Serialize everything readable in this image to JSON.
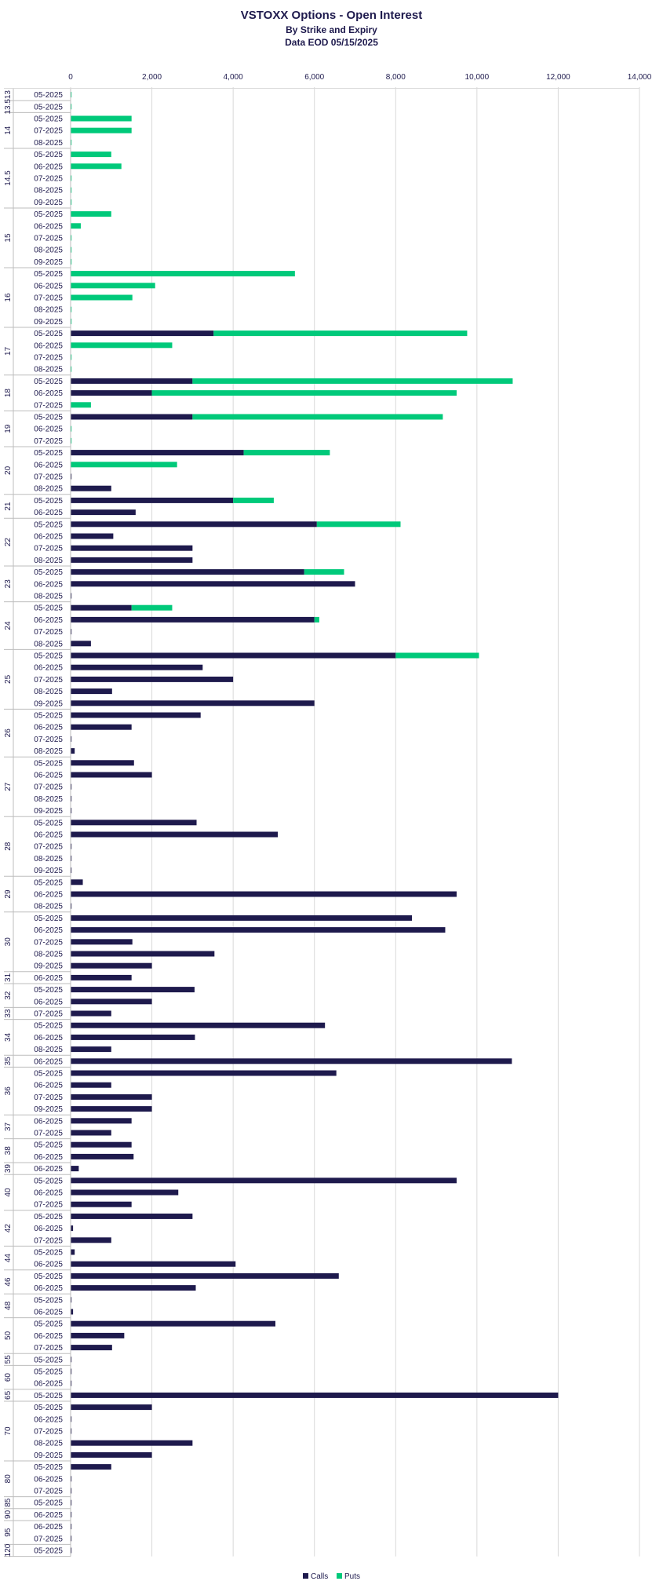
{
  "chart_data": {
    "type": "bar",
    "orientation": "horizontal",
    "stacked": true,
    "title": "VSTOXX Options - Open Interest",
    "subtitle": [
      "By Strike and Expiry",
      "Data EOD 05/15/2025"
    ],
    "xlim": [
      0,
      14000
    ],
    "xticks": [
      "0",
      "2,000",
      "4,000",
      "6,000",
      "8,000",
      "10,000",
      "12,000",
      "14,000"
    ],
    "grid": true,
    "legend_position": "bottom",
    "series": [
      {
        "name": "Calls",
        "color": "#1e1a4d"
      },
      {
        "name": "Puts",
        "color": "#00c97a"
      }
    ],
    "groups": [
      {
        "strike": "13",
        "rows": [
          {
            "e": "05-2025",
            "c": 0,
            "p": 20
          }
        ]
      },
      {
        "strike": "13.5",
        "rows": [
          {
            "e": "05-2025",
            "c": 0,
            "p": 20
          }
        ]
      },
      {
        "strike": "14",
        "rows": [
          {
            "e": "05-2025",
            "c": 0,
            "p": 1500
          },
          {
            "e": "07-2025",
            "c": 0,
            "p": 1500
          },
          {
            "e": "08-2025",
            "c": 0,
            "p": 20
          }
        ]
      },
      {
        "strike": "14.5",
        "rows": [
          {
            "e": "05-2025",
            "c": 0,
            "p": 1000
          },
          {
            "e": "06-2025",
            "c": 0,
            "p": 1250
          },
          {
            "e": "07-2025",
            "c": 0,
            "p": 20
          },
          {
            "e": "08-2025",
            "c": 0,
            "p": 20
          },
          {
            "e": "09-2025",
            "c": 0,
            "p": 20
          }
        ]
      },
      {
        "strike": "15",
        "rows": [
          {
            "e": "05-2025",
            "c": 0,
            "p": 1000
          },
          {
            "e": "06-2025",
            "c": 0,
            "p": 250
          },
          {
            "e": "07-2025",
            "c": 0,
            "p": 20
          },
          {
            "e": "08-2025",
            "c": 0,
            "p": 20
          },
          {
            "e": "09-2025",
            "c": 0,
            "p": 20
          }
        ]
      },
      {
        "strike": "16",
        "rows": [
          {
            "e": "05-2025",
            "c": 0,
            "p": 5520
          },
          {
            "e": "06-2025",
            "c": 0,
            "p": 2080
          },
          {
            "e": "07-2025",
            "c": 0,
            "p": 1520
          },
          {
            "e": "08-2025",
            "c": 0,
            "p": 20
          },
          {
            "e": "09-2025",
            "c": 0,
            "p": 20
          }
        ]
      },
      {
        "strike": "17",
        "rows": [
          {
            "e": "05-2025",
            "c": 3520,
            "p": 6240
          },
          {
            "e": "06-2025",
            "c": 0,
            "p": 2500
          },
          {
            "e": "07-2025",
            "c": 0,
            "p": 20
          },
          {
            "e": "08-2025",
            "c": 0,
            "p": 20
          }
        ]
      },
      {
        "strike": "18",
        "rows": [
          {
            "e": "05-2025",
            "c": 3000,
            "p": 7880
          },
          {
            "e": "06-2025",
            "c": 2000,
            "p": 7500
          },
          {
            "e": "07-2025",
            "c": 0,
            "p": 500
          }
        ]
      },
      {
        "strike": "19",
        "rows": [
          {
            "e": "05-2025",
            "c": 3000,
            "p": 6160
          },
          {
            "e": "06-2025",
            "c": 0,
            "p": 20
          },
          {
            "e": "07-2025",
            "c": 0,
            "p": 20
          }
        ]
      },
      {
        "strike": "20",
        "rows": [
          {
            "e": "05-2025",
            "c": 4260,
            "p": 2120
          },
          {
            "e": "06-2025",
            "c": 0,
            "p": 2620
          },
          {
            "e": "07-2025",
            "c": 20,
            "p": 0
          },
          {
            "e": "08-2025",
            "c": 1000,
            "p": 0
          }
        ]
      },
      {
        "strike": "21",
        "rows": [
          {
            "e": "05-2025",
            "c": 4000,
            "p": 1000
          },
          {
            "e": "06-2025",
            "c": 1600,
            "p": 0
          }
        ]
      },
      {
        "strike": "22",
        "rows": [
          {
            "e": "05-2025",
            "c": 6060,
            "p": 2060
          },
          {
            "e": "06-2025",
            "c": 1050,
            "p": 0
          },
          {
            "e": "07-2025",
            "c": 3000,
            "p": 0
          },
          {
            "e": "08-2025",
            "c": 3000,
            "p": 0
          }
        ]
      },
      {
        "strike": "23",
        "rows": [
          {
            "e": "05-2025",
            "c": 5750,
            "p": 980
          },
          {
            "e": "06-2025",
            "c": 7000,
            "p": 0
          },
          {
            "e": "08-2025",
            "c": 20,
            "p": 0
          }
        ]
      },
      {
        "strike": "24",
        "rows": [
          {
            "e": "05-2025",
            "c": 1500,
            "p": 1000
          },
          {
            "e": "06-2025",
            "c": 6000,
            "p": 120
          },
          {
            "e": "07-2025",
            "c": 20,
            "p": 0
          },
          {
            "e": "08-2025",
            "c": 500,
            "p": 0
          }
        ]
      },
      {
        "strike": "25",
        "rows": [
          {
            "e": "05-2025",
            "c": 8000,
            "p": 2050
          },
          {
            "e": "06-2025",
            "c": 3250,
            "p": 0
          },
          {
            "e": "07-2025",
            "c": 4000,
            "p": 0
          },
          {
            "e": "08-2025",
            "c": 1020,
            "p": 0
          },
          {
            "e": "09-2025",
            "c": 6000,
            "p": 0
          }
        ]
      },
      {
        "strike": "26",
        "rows": [
          {
            "e": "05-2025",
            "c": 3200,
            "p": 0
          },
          {
            "e": "06-2025",
            "c": 1500,
            "p": 0
          },
          {
            "e": "07-2025",
            "c": 20,
            "p": 0
          },
          {
            "e": "08-2025",
            "c": 100,
            "p": 0
          }
        ]
      },
      {
        "strike": "27",
        "rows": [
          {
            "e": "05-2025",
            "c": 1560,
            "p": 0
          },
          {
            "e": "06-2025",
            "c": 2000,
            "p": 0
          },
          {
            "e": "07-2025",
            "c": 20,
            "p": 0
          },
          {
            "e": "08-2025",
            "c": 20,
            "p": 0
          },
          {
            "e": "09-2025",
            "c": 20,
            "p": 0
          }
        ]
      },
      {
        "strike": "28",
        "rows": [
          {
            "e": "05-2025",
            "c": 3100,
            "p": 0
          },
          {
            "e": "06-2025",
            "c": 5100,
            "p": 0
          },
          {
            "e": "07-2025",
            "c": 20,
            "p": 0
          },
          {
            "e": "08-2025",
            "c": 20,
            "p": 0
          },
          {
            "e": "09-2025",
            "c": 20,
            "p": 0
          }
        ]
      },
      {
        "strike": "29",
        "rows": [
          {
            "e": "05-2025",
            "c": 300,
            "p": 0
          },
          {
            "e": "06-2025",
            "c": 9500,
            "p": 0
          },
          {
            "e": "08-2025",
            "c": 20,
            "p": 0
          }
        ]
      },
      {
        "strike": "30",
        "rows": [
          {
            "e": "05-2025",
            "c": 8400,
            "p": 0
          },
          {
            "e": "06-2025",
            "c": 9220,
            "p": 0
          },
          {
            "e": "07-2025",
            "c": 1520,
            "p": 0
          },
          {
            "e": "08-2025",
            "c": 3540,
            "p": 0
          },
          {
            "e": "09-2025",
            "c": 2000,
            "p": 0
          }
        ]
      },
      {
        "strike": "31",
        "rows": [
          {
            "e": "06-2025",
            "c": 1500,
            "p": 0
          }
        ]
      },
      {
        "strike": "32",
        "rows": [
          {
            "e": "05-2025",
            "c": 3050,
            "p": 0
          },
          {
            "e": "06-2025",
            "c": 2000,
            "p": 0
          }
        ]
      },
      {
        "strike": "33",
        "rows": [
          {
            "e": "07-2025",
            "c": 1000,
            "p": 0
          }
        ]
      },
      {
        "strike": "34",
        "rows": [
          {
            "e": "05-2025",
            "c": 6260,
            "p": 0
          },
          {
            "e": "06-2025",
            "c": 3060,
            "p": 0
          },
          {
            "e": "08-2025",
            "c": 1000,
            "p": 0
          }
        ]
      },
      {
        "strike": "35",
        "rows": [
          {
            "e": "06-2025",
            "c": 10860,
            "p": 0
          }
        ]
      },
      {
        "strike": "36",
        "rows": [
          {
            "e": "05-2025",
            "c": 6540,
            "p": 0
          },
          {
            "e": "06-2025",
            "c": 1000,
            "p": 0
          },
          {
            "e": "07-2025",
            "c": 2000,
            "p": 0
          },
          {
            "e": "09-2025",
            "c": 2000,
            "p": 0
          }
        ]
      },
      {
        "strike": "37",
        "rows": [
          {
            "e": "06-2025",
            "c": 1500,
            "p": 0
          },
          {
            "e": "07-2025",
            "c": 1000,
            "p": 0
          }
        ]
      },
      {
        "strike": "38",
        "rows": [
          {
            "e": "05-2025",
            "c": 1500,
            "p": 0
          },
          {
            "e": "06-2025",
            "c": 1550,
            "p": 0
          }
        ]
      },
      {
        "strike": "39",
        "rows": [
          {
            "e": "06-2025",
            "c": 200,
            "p": 0
          }
        ]
      },
      {
        "strike": "40",
        "rows": [
          {
            "e": "05-2025",
            "c": 9500,
            "p": 0
          },
          {
            "e": "06-2025",
            "c": 2650,
            "p": 0
          },
          {
            "e": "07-2025",
            "c": 1500,
            "p": 0
          }
        ]
      },
      {
        "strike": "42",
        "rows": [
          {
            "e": "05-2025",
            "c": 3000,
            "p": 0
          },
          {
            "e": "06-2025",
            "c": 60,
            "p": 0
          },
          {
            "e": "07-2025",
            "c": 1000,
            "p": 0
          }
        ]
      },
      {
        "strike": "44",
        "rows": [
          {
            "e": "05-2025",
            "c": 100,
            "p": 0
          },
          {
            "e": "06-2025",
            "c": 4060,
            "p": 0
          }
        ]
      },
      {
        "strike": "46",
        "rows": [
          {
            "e": "05-2025",
            "c": 6600,
            "p": 0
          },
          {
            "e": "06-2025",
            "c": 3080,
            "p": 0
          }
        ]
      },
      {
        "strike": "48",
        "rows": [
          {
            "e": "05-2025",
            "c": 20,
            "p": 0
          },
          {
            "e": "06-2025",
            "c": 60,
            "p": 0
          }
        ]
      },
      {
        "strike": "50",
        "rows": [
          {
            "e": "05-2025",
            "c": 5040,
            "p": 0
          },
          {
            "e": "06-2025",
            "c": 1320,
            "p": 0
          },
          {
            "e": "07-2025",
            "c": 1020,
            "p": 0
          }
        ]
      },
      {
        "strike": "55",
        "rows": [
          {
            "e": "05-2025",
            "c": 20,
            "p": 0
          }
        ]
      },
      {
        "strike": "60",
        "rows": [
          {
            "e": "05-2025",
            "c": 20,
            "p": 0
          },
          {
            "e": "06-2025",
            "c": 20,
            "p": 0
          }
        ]
      },
      {
        "strike": "65",
        "rows": [
          {
            "e": "05-2025",
            "c": 12000,
            "p": 0
          }
        ]
      },
      {
        "strike": "70",
        "rows": [
          {
            "e": "05-2025",
            "c": 2000,
            "p": 0
          },
          {
            "e": "06-2025",
            "c": 20,
            "p": 0
          },
          {
            "e": "07-2025",
            "c": 20,
            "p": 0
          },
          {
            "e": "08-2025",
            "c": 3000,
            "p": 0
          },
          {
            "e": "09-2025",
            "c": 2000,
            "p": 0
          }
        ]
      },
      {
        "strike": "80",
        "rows": [
          {
            "e": "05-2025",
            "c": 1000,
            "p": 0
          },
          {
            "e": "06-2025",
            "c": 20,
            "p": 0
          },
          {
            "e": "07-2025",
            "c": 20,
            "p": 0
          }
        ]
      },
      {
        "strike": "85",
        "rows": [
          {
            "e": "05-2025",
            "c": 20,
            "p": 0
          }
        ]
      },
      {
        "strike": "90",
        "rows": [
          {
            "e": "06-2025",
            "c": 20,
            "p": 0
          }
        ]
      },
      {
        "strike": "95",
        "rows": [
          {
            "e": "06-2025",
            "c": 20,
            "p": 0
          },
          {
            "e": "07-2025",
            "c": 20,
            "p": 0
          }
        ]
      },
      {
        "strike": "120",
        "rows": [
          {
            "e": "05-2025",
            "c": 20,
            "p": 0
          }
        ]
      }
    ]
  }
}
